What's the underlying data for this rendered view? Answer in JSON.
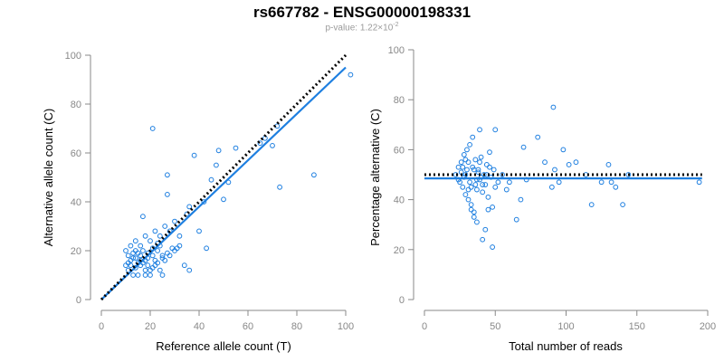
{
  "title": "rs667782 - ENSG00000198331",
  "subtitle": {
    "prefix": "p-value: 1.22×10",
    "exponent": "-2"
  },
  "colors": {
    "points": "#1e7fe0",
    "fit_line": "#1e7fe0",
    "reference_line": "#000000",
    "axis": "#888888",
    "tick_text": "#888888",
    "label_text": "#000000"
  },
  "chart_data": [
    {
      "type": "scatter",
      "xlabel": "Reference allele count (T)",
      "ylabel": "Alternative allele count (C)",
      "xlim": [
        0,
        100
      ],
      "ylim": [
        0,
        100
      ],
      "xticks": [
        0,
        20,
        40,
        60,
        80,
        100
      ],
      "yticks": [
        0,
        20,
        40,
        60,
        80,
        100
      ],
      "grid": false,
      "fit_line": {
        "x": [
          0,
          100
        ],
        "y": [
          0,
          95
        ]
      },
      "reference_line": {
        "x": [
          0,
          100
        ],
        "y": [
          0,
          100
        ],
        "style": "dotted"
      },
      "points": [
        [
          10,
          20
        ],
        [
          11,
          18
        ],
        [
          12,
          16
        ],
        [
          13,
          19
        ],
        [
          14,
          17
        ],
        [
          15,
          15
        ],
        [
          10,
          14
        ],
        [
          11,
          12
        ],
        [
          13,
          10
        ],
        [
          14,
          13
        ],
        [
          16,
          18
        ],
        [
          17,
          20
        ],
        [
          18,
          16
        ],
        [
          19,
          14
        ],
        [
          20,
          12
        ],
        [
          21,
          18
        ],
        [
          22,
          16
        ],
        [
          23,
          20
        ],
        [
          24,
          22
        ],
        [
          25,
          18
        ],
        [
          12,
          22
        ],
        [
          14,
          24
        ],
        [
          16,
          22
        ],
        [
          18,
          26
        ],
        [
          20,
          24
        ],
        [
          22,
          28
        ],
        [
          24,
          26
        ],
        [
          26,
          30
        ],
        [
          28,
          28
        ],
        [
          30,
          32
        ],
        [
          17,
          34
        ],
        [
          21,
          70
        ],
        [
          27,
          51
        ],
        [
          27,
          43
        ],
        [
          31,
          21
        ],
        [
          32,
          26
        ],
        [
          34,
          14
        ],
        [
          35,
          35
        ],
        [
          36,
          38
        ],
        [
          38,
          59
        ],
        [
          40,
          28
        ],
        [
          42,
          40
        ],
        [
          43,
          21
        ],
        [
          45,
          49
        ],
        [
          47,
          55
        ],
        [
          48,
          61
        ],
        [
          50,
          41
        ],
        [
          52,
          48
        ],
        [
          55,
          62
        ],
        [
          65,
          64
        ],
        [
          67,
          66
        ],
        [
          70,
          63
        ],
        [
          72,
          71
        ],
        [
          73,
          46
        ],
        [
          87,
          51
        ],
        [
          102,
          92
        ],
        [
          20,
          10
        ],
        [
          22,
          14
        ],
        [
          24,
          12
        ],
        [
          26,
          16
        ],
        [
          28,
          18
        ],
        [
          30,
          20
        ],
        [
          32,
          22
        ],
        [
          15,
          10
        ],
        [
          18,
          10
        ],
        [
          25,
          10
        ],
        [
          36,
          12
        ],
        [
          12,
          14
        ],
        [
          16,
          16
        ],
        [
          19,
          19
        ],
        [
          21,
          21
        ],
        [
          23,
          23
        ],
        [
          11,
          15
        ],
        [
          13,
          17
        ],
        [
          15,
          19
        ],
        [
          17,
          15
        ],
        [
          19,
          17
        ],
        [
          21,
          13
        ],
        [
          23,
          15
        ],
        [
          25,
          17
        ],
        [
          27,
          19
        ],
        [
          29,
          21
        ],
        [
          14,
          20
        ],
        [
          16,
          14
        ],
        [
          18,
          12
        ]
      ]
    },
    {
      "type": "scatter",
      "xlabel": "Total number of reads",
      "ylabel": "Percentage alternative (C)",
      "xlim": [
        0,
        200
      ],
      "ylim": [
        0,
        100
      ],
      "xticks": [
        0,
        50,
        100,
        150,
        200
      ],
      "yticks": [
        0,
        20,
        40,
        60,
        80,
        100
      ],
      "grid": false,
      "fit_line": {
        "x": [
          0,
          196
        ],
        "y": [
          48.5,
          48.5
        ]
      },
      "reference_line": {
        "x": [
          0,
          196
        ],
        "y": [
          50,
          50
        ],
        "style": "dotted"
      },
      "points": [
        [
          22,
          50
        ],
        [
          24,
          53
        ],
        [
          25,
          47
        ],
        [
          26,
          55
        ],
        [
          27,
          45
        ],
        [
          28,
          58
        ],
        [
          29,
          42
        ],
        [
          30,
          60
        ],
        [
          31,
          40
        ],
        [
          32,
          62
        ],
        [
          33,
          38
        ],
        [
          34,
          65
        ],
        [
          35,
          35
        ],
        [
          36,
          56
        ],
        [
          37,
          44
        ],
        [
          38,
          52
        ],
        [
          39,
          48
        ],
        [
          40,
          57
        ],
        [
          41,
          43
        ],
        [
          42,
          50
        ],
        [
          43,
          46
        ],
        [
          44,
          54
        ],
        [
          45,
          41
        ],
        [
          46,
          59
        ],
        [
          47,
          49
        ],
        [
          48,
          37
        ],
        [
          49,
          52
        ],
        [
          50,
          45
        ],
        [
          26,
          51
        ],
        [
          28,
          49
        ],
        [
          30,
          52
        ],
        [
          32,
          47
        ],
        [
          34,
          53
        ],
        [
          36,
          46
        ],
        [
          38,
          51
        ],
        [
          40,
          49
        ],
        [
          24,
          48
        ],
        [
          29,
          56
        ],
        [
          31,
          44
        ],
        [
          33,
          36
        ],
        [
          35,
          33
        ],
        [
          37,
          31
        ],
        [
          39,
          68
        ],
        [
          41,
          24
        ],
        [
          43,
          28
        ],
        [
          45,
          36
        ],
        [
          48,
          21
        ],
        [
          50,
          68
        ],
        [
          52,
          47
        ],
        [
          55,
          50
        ],
        [
          58,
          44
        ],
        [
          60,
          47
        ],
        [
          65,
          32
        ],
        [
          68,
          40
        ],
        [
          70,
          61
        ],
        [
          72,
          48
        ],
        [
          80,
          65
        ],
        [
          85,
          55
        ],
        [
          90,
          45
        ],
        [
          91,
          77
        ],
        [
          92,
          52
        ],
        [
          95,
          47
        ],
        [
          98,
          60
        ],
        [
          102,
          54
        ],
        [
          107,
          55
        ],
        [
          114,
          50
        ],
        [
          118,
          38
        ],
        [
          125,
          47
        ],
        [
          130,
          54
        ],
        [
          132,
          47
        ],
        [
          135,
          45
        ],
        [
          140,
          38
        ],
        [
          144,
          50
        ],
        [
          194,
          47
        ],
        [
          27,
          53
        ],
        [
          29,
          50
        ],
        [
          31,
          55
        ],
        [
          33,
          45
        ],
        [
          35,
          52
        ],
        [
          37,
          48
        ],
        [
          39,
          55
        ],
        [
          41,
          46
        ],
        [
          44,
          50
        ],
        [
          46,
          53
        ]
      ]
    }
  ]
}
